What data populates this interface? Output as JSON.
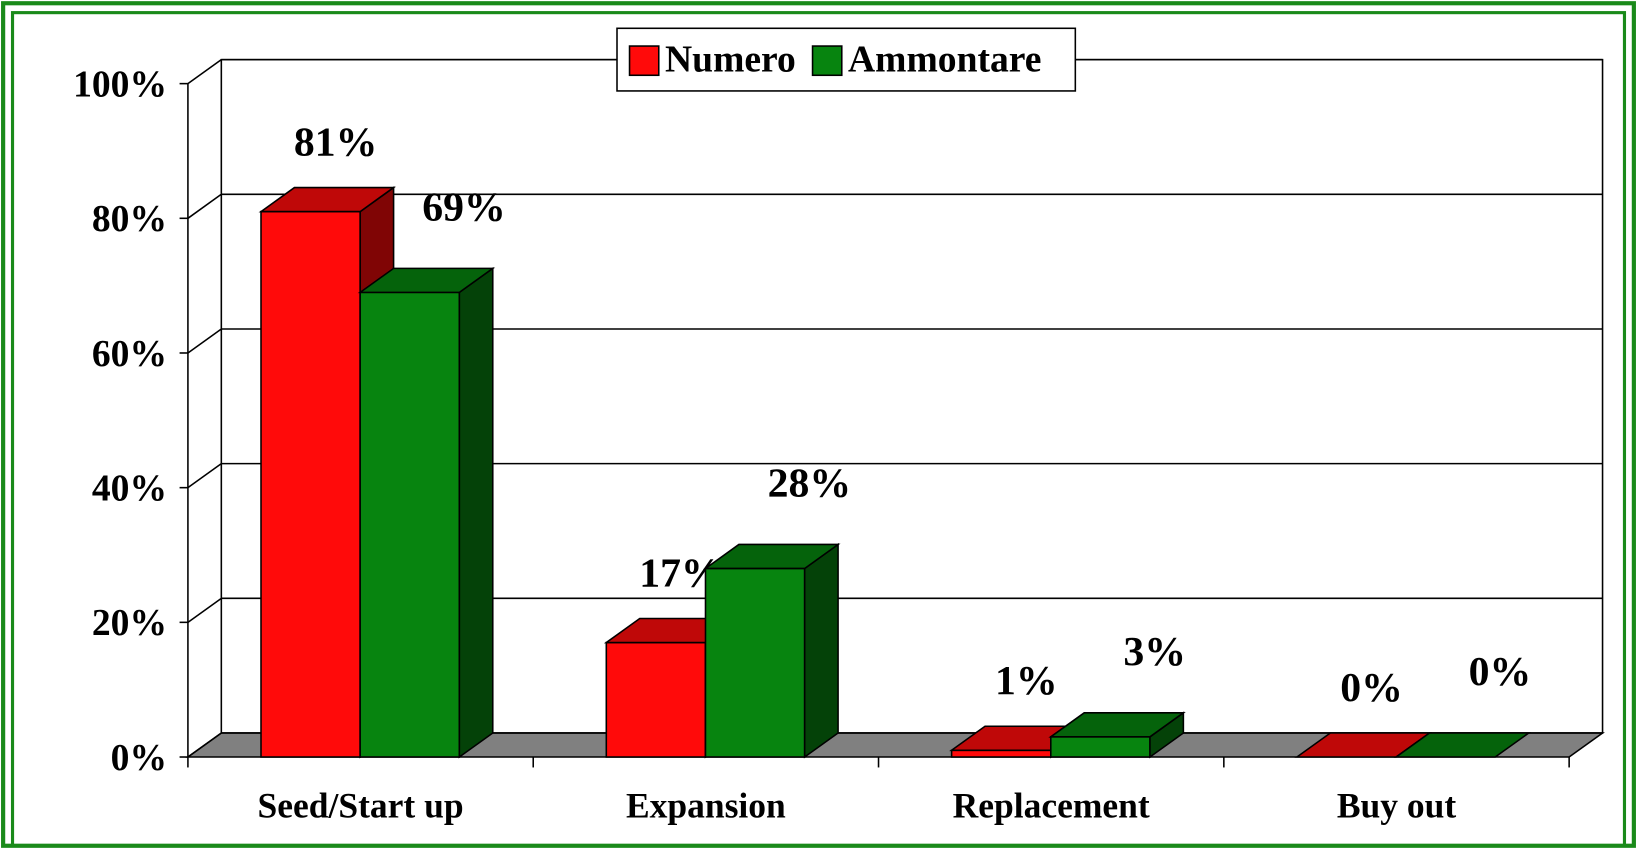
{
  "chart_data": {
    "type": "bar3d",
    "categories": [
      "Seed/Start up",
      "Expansion",
      "Replacement",
      "Buy out"
    ],
    "series": [
      {
        "name": "Numero",
        "color": "#ff0a0a",
        "values": [
          81,
          17,
          1,
          0
        ],
        "value_labels": [
          "81%",
          "17%",
          "1%",
          "0%"
        ]
      },
      {
        "name": "Ammontare",
        "color": "#07840f",
        "values": [
          69,
          28,
          3,
          0
        ],
        "value_labels": [
          "69%",
          "28%",
          "3%",
          "0%"
        ]
      }
    ],
    "ylim": [
      0,
      100
    ],
    "yticks": [
      {
        "value": 0,
        "label": "0%"
      },
      {
        "value": 20,
        "label": "20%"
      },
      {
        "value": 40,
        "label": "40%"
      },
      {
        "value": 60,
        "label": "60%"
      },
      {
        "value": 80,
        "label": "80%"
      },
      {
        "value": 100,
        "label": "100%"
      }
    ],
    "grid": true,
    "legend": "top"
  }
}
